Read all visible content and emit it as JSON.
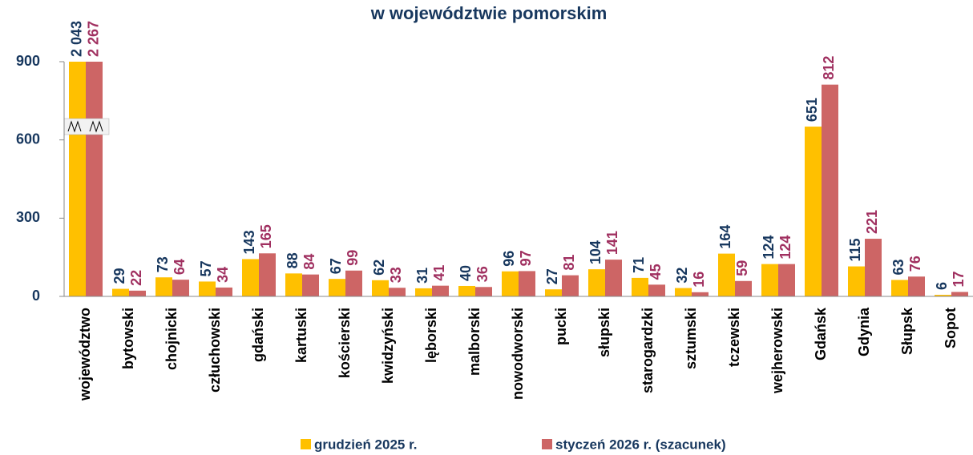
{
  "chart_data": {
    "type": "bar",
    "title": "w województwie pomorskim",
    "categories": [
      "województwo",
      "bytowski",
      "chojnicki",
      "człuchowski",
      "gdański",
      "kartuski",
      "kościerski",
      "kwidzyński",
      "lęborski",
      "malborski",
      "nowodworski",
      "pucki",
      "słupski",
      "starogardzki",
      "sztumski",
      "tczewski",
      "wejherowski",
      "Gdańsk",
      "Gdynia",
      "Słupsk",
      "Sopot"
    ],
    "series": [
      {
        "name": "grudzień 2025 r.",
        "color": "#FFC000",
        "label_color": "#17375E",
        "values": [
          2043,
          29,
          73,
          57,
          143,
          88,
          67,
          62,
          31,
          40,
          96,
          27,
          104,
          71,
          32,
          164,
          124,
          651,
          115,
          63,
          6
        ],
        "value_labels": [
          "2 043",
          "29",
          "73",
          "57",
          "143",
          "88",
          "67",
          "62",
          "31",
          "40",
          "96",
          "27",
          "104",
          "71",
          "32",
          "164",
          "124",
          "651",
          "115",
          "63",
          "6"
        ]
      },
      {
        "name": "styczeń 2026 r. (szacunek)",
        "color": "#CD6565",
        "label_color": "#A03060",
        "values": [
          2267,
          22,
          64,
          34,
          165,
          84,
          99,
          33,
          41,
          36,
          97,
          81,
          141,
          45,
          16,
          59,
          124,
          812,
          221,
          76,
          17
        ],
        "value_labels": [
          "2 267",
          "22",
          "64",
          "34",
          "165",
          "84",
          "99",
          "33",
          "41",
          "36",
          "97",
          "81",
          "141",
          "45",
          "16",
          "59",
          "124",
          "812",
          "221",
          "76",
          "17"
        ]
      }
    ],
    "ylim": [
      0,
      900
    ],
    "yticks": [
      0,
      300,
      600,
      900
    ],
    "grid": false,
    "legend": "bottom"
  }
}
